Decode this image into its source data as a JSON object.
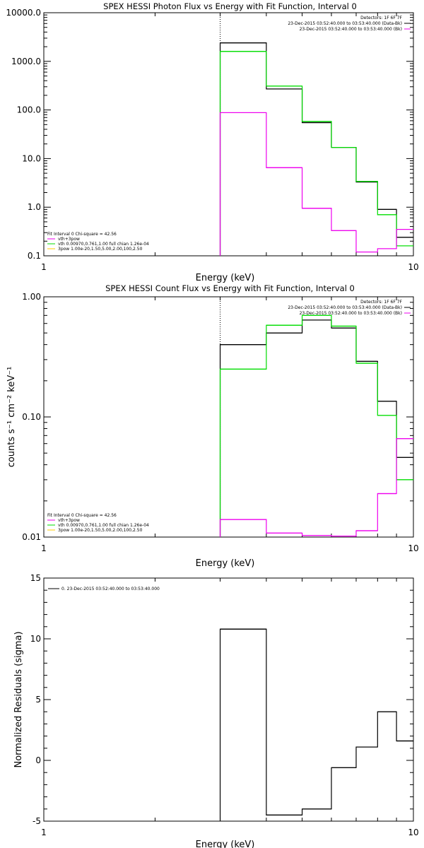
{
  "chart_data": [
    {
      "type": "line",
      "subtype": "step-histogram",
      "title": "SPEX HESSI Photon Flux vs Energy with Fit Function, Interval 0",
      "xlabel": "Energy (keV)",
      "ylabel": "",
      "xscale": "log",
      "yscale": "log",
      "xlim": [
        1,
        10
      ],
      "ylim": [
        0.1,
        10000
      ],
      "xticks": [
        "1",
        "10"
      ],
      "yticks": [
        "0.1",
        "1.0",
        "10.0",
        "100.0",
        "1000.0",
        "10000.0"
      ],
      "bin_edges": [
        3,
        4,
        5,
        6,
        7,
        8,
        9,
        10
      ],
      "series": [
        {
          "color": "#000000",
          "values": [
            2400,
            270,
            55,
            17,
            3.3,
            0.9,
            0.24
          ]
        },
        {
          "color": "#00dd00",
          "values": [
            1600,
            310,
            58,
            17,
            3.4,
            0.7,
            0.16
          ]
        },
        {
          "color": "#ee00ee",
          "values": [
            88,
            6.5,
            0.95,
            0.33,
            0.12,
            0.14,
            0.35
          ]
        }
      ],
      "vline": 3,
      "legend_top": [
        {
          "text": "Detectors: 1F 6F 7F",
          "color": "#000000"
        },
        {
          "text": "23-Dec-2015 03:52:40.000 to 03:53:40.000 (Data-Bk)",
          "color": "#000000"
        },
        {
          "text": "23-Dec-2015 03:52:40.000 to 03:53:40.000 (Bk)",
          "color": "#ee00ee"
        }
      ],
      "legend_bottom": [
        {
          "text": "Fit Interval 0   Chi-square = 42.56",
          "color": "#000000"
        },
        {
          "text": "vth+3pow",
          "color": "#ee00ee"
        },
        {
          "text": "vth 0.00970,0.761,1.00  full chian 1.26e-04",
          "color": "#00dd00"
        },
        {
          "text": "3pow 1.00e-20,1.50,5.00,2.00,100,2.50",
          "color": "#ffcc00"
        }
      ]
    },
    {
      "type": "line",
      "subtype": "step-histogram",
      "title": "SPEX HESSI Count Flux vs Energy with Fit Function, Interval 0",
      "xlabel": "Energy (keV)",
      "ylabel": "counts s⁻¹ cm⁻² keV⁻¹",
      "xscale": "log",
      "yscale": "log",
      "xlim": [
        1,
        10
      ],
      "ylim": [
        0.01,
        1
      ],
      "xticks": [
        "1",
        "10"
      ],
      "yticks": [
        "0.01",
        "0.10",
        "1.00"
      ],
      "bin_edges": [
        3,
        4,
        5,
        6,
        7,
        8,
        9,
        10
      ],
      "series": [
        {
          "color": "#000000",
          "values": [
            0.4,
            0.5,
            0.64,
            0.55,
            0.29,
            0.135,
            0.046
          ]
        },
        {
          "color": "#00dd00",
          "values": [
            0.25,
            0.58,
            0.7,
            0.57,
            0.28,
            0.103,
            0.03
          ]
        },
        {
          "color": "#ee00ee",
          "values": [
            0.014,
            0.0108,
            0.0103,
            0.0102,
            0.0113,
            0.023,
            0.066
          ]
        }
      ],
      "vline": 3,
      "legend_top": [
        {
          "text": "Detectors: 1F 6F 7F",
          "color": "#000000"
        },
        {
          "text": "23-Dec-2015 03:52:40.000 to 03:53:40.000 (Data-Bk)",
          "color": "#000000"
        },
        {
          "text": "23-Dec-2015 03:52:40.000 to 03:53:40.000 (Bk)",
          "color": "#ee00ee"
        }
      ],
      "legend_bottom": [
        {
          "text": "Fit Interval 0   Chi-square = 42.56",
          "color": "#000000"
        },
        {
          "text": "vth+3pow",
          "color": "#ee00ee"
        },
        {
          "text": "vth 0.00970,0.761,1.00  full chian 1.26e-04",
          "color": "#00dd00"
        },
        {
          "text": "3pow 1.00e-20,1.50,5.00,2.00,100,2.50",
          "color": "#ffcc00"
        }
      ]
    },
    {
      "type": "line",
      "subtype": "step-histogram",
      "title": "",
      "xlabel": "Energy (keV)",
      "ylabel": "Normalized Residuals (sigma)",
      "xscale": "log",
      "yscale": "linear",
      "xlim": [
        1,
        10
      ],
      "ylim": [
        -5,
        15
      ],
      "xticks": [
        "1",
        "10"
      ],
      "yticks": [
        "-5",
        "0",
        "5",
        "10",
        "15"
      ],
      "bin_edges": [
        3,
        4,
        5,
        6,
        7,
        8,
        9,
        10
      ],
      "series": [
        {
          "color": "#000000",
          "values": [
            10.8,
            -4.5,
            -4.0,
            -0.6,
            1.1,
            4.0,
            1.6
          ]
        }
      ],
      "legend_top_left": "0. 23-Dec-2015 03:52:40.000 to 03:53:40.000"
    }
  ]
}
